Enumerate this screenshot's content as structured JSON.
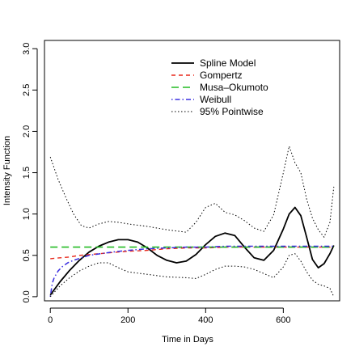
{
  "chart_data": {
    "type": "line",
    "title": "",
    "xlabel": "Time in Days",
    "ylabel": "Intensity Function",
    "xlim": [
      -15,
      745
    ],
    "ylim": [
      -0.05,
      3.1
    ],
    "x_ticks": [
      0,
      200,
      400,
      600
    ],
    "y_ticks": [
      0.0,
      0.5,
      1.0,
      1.5,
      2.0,
      2.5,
      3.0
    ],
    "x_tick_labels": [
      "0",
      "200",
      "400",
      "600"
    ],
    "y_tick_labels": [
      "0.0",
      "0.5",
      "1.0",
      "1.5",
      "2.0",
      "2.5",
      "3.0"
    ],
    "grid": false,
    "legend_position": "top-right",
    "series": [
      {
        "name": "Spline Model",
        "color": "#000000",
        "style": "solid",
        "x": [
          0,
          25,
          50,
          75,
          100,
          125,
          150,
          175,
          200,
          225,
          250,
          275,
          300,
          325,
          350,
          375,
          400,
          425,
          450,
          475,
          500,
          525,
          550,
          575,
          600,
          615,
          630,
          645,
          660,
          675,
          690,
          705,
          720,
          730
        ],
        "y": [
          0.02,
          0.18,
          0.32,
          0.44,
          0.54,
          0.61,
          0.66,
          0.69,
          0.69,
          0.66,
          0.59,
          0.5,
          0.44,
          0.41,
          0.43,
          0.51,
          0.63,
          0.73,
          0.77,
          0.74,
          0.6,
          0.47,
          0.44,
          0.56,
          0.82,
          1.0,
          1.08,
          0.98,
          0.72,
          0.45,
          0.35,
          0.4,
          0.52,
          0.62
        ]
      },
      {
        "name": "Gompertz",
        "color": "#e8291c",
        "style": "dashed",
        "x": [
          0,
          25,
          50,
          75,
          100,
          150,
          200,
          250,
          300,
          350,
          400,
          450,
          500,
          550,
          600,
          650,
          700,
          730
        ],
        "y": [
          0.46,
          0.47,
          0.48,
          0.5,
          0.51,
          0.53,
          0.55,
          0.56,
          0.58,
          0.59,
          0.59,
          0.6,
          0.6,
          0.6,
          0.6,
          0.6,
          0.6,
          0.6
        ]
      },
      {
        "name": "Musa–Okumoto",
        "color": "#22bb22",
        "style": "longdash",
        "x": [
          0,
          100,
          200,
          300,
          400,
          500,
          600,
          730
        ],
        "y": [
          0.6,
          0.6,
          0.6,
          0.6,
          0.6,
          0.6,
          0.6,
          0.6
        ]
      },
      {
        "name": "Weibull",
        "color": "#3a2ee0",
        "style": "dotdash",
        "x": [
          0,
          5,
          10,
          20,
          30,
          45,
          60,
          80,
          100,
          130,
          160,
          200,
          250,
          300,
          350,
          400,
          450,
          500,
          550,
          600,
          650,
          700,
          730
        ],
        "y": [
          0.0,
          0.16,
          0.23,
          0.31,
          0.36,
          0.41,
          0.44,
          0.47,
          0.5,
          0.52,
          0.54,
          0.56,
          0.58,
          0.59,
          0.6,
          0.6,
          0.61,
          0.61,
          0.61,
          0.61,
          0.61,
          0.61,
          0.61
        ]
      },
      {
        "name": "95% Pointwise",
        "color": "#000000",
        "style": "dotted",
        "x": [
          0,
          20,
          40,
          60,
          80,
          100,
          125,
          150,
          175,
          200,
          250,
          300,
          350,
          375,
          400,
          425,
          450,
          475,
          500,
          525,
          550,
          575,
          600,
          615,
          630,
          645,
          660,
          675,
          690,
          705,
          720,
          730
        ],
        "y": [
          1.69,
          1.42,
          1.2,
          1.0,
          0.86,
          0.83,
          0.88,
          0.91,
          0.9,
          0.88,
          0.85,
          0.81,
          0.78,
          0.9,
          1.08,
          1.13,
          1.02,
          0.99,
          0.92,
          0.83,
          0.79,
          0.99,
          1.5,
          1.82,
          1.62,
          1.5,
          1.18,
          0.95,
          0.81,
          0.72,
          0.9,
          1.33
        ]
      },
      {
        "name": "",
        "color": "#000000",
        "style": "dotted",
        "x": [
          0,
          25,
          50,
          75,
          100,
          125,
          150,
          175,
          200,
          250,
          300,
          350,
          375,
          400,
          425,
          450,
          475,
          500,
          525,
          550,
          575,
          600,
          615,
          630,
          645,
          660,
          675,
          690,
          705,
          720,
          730
        ],
        "y": [
          0.0,
          0.13,
          0.23,
          0.31,
          0.37,
          0.41,
          0.41,
          0.35,
          0.3,
          0.27,
          0.24,
          0.23,
          0.22,
          0.27,
          0.33,
          0.37,
          0.37,
          0.36,
          0.33,
          0.28,
          0.23,
          0.36,
          0.5,
          0.52,
          0.43,
          0.3,
          0.2,
          0.15,
          0.13,
          0.1,
          0.0
        ]
      }
    ]
  }
}
